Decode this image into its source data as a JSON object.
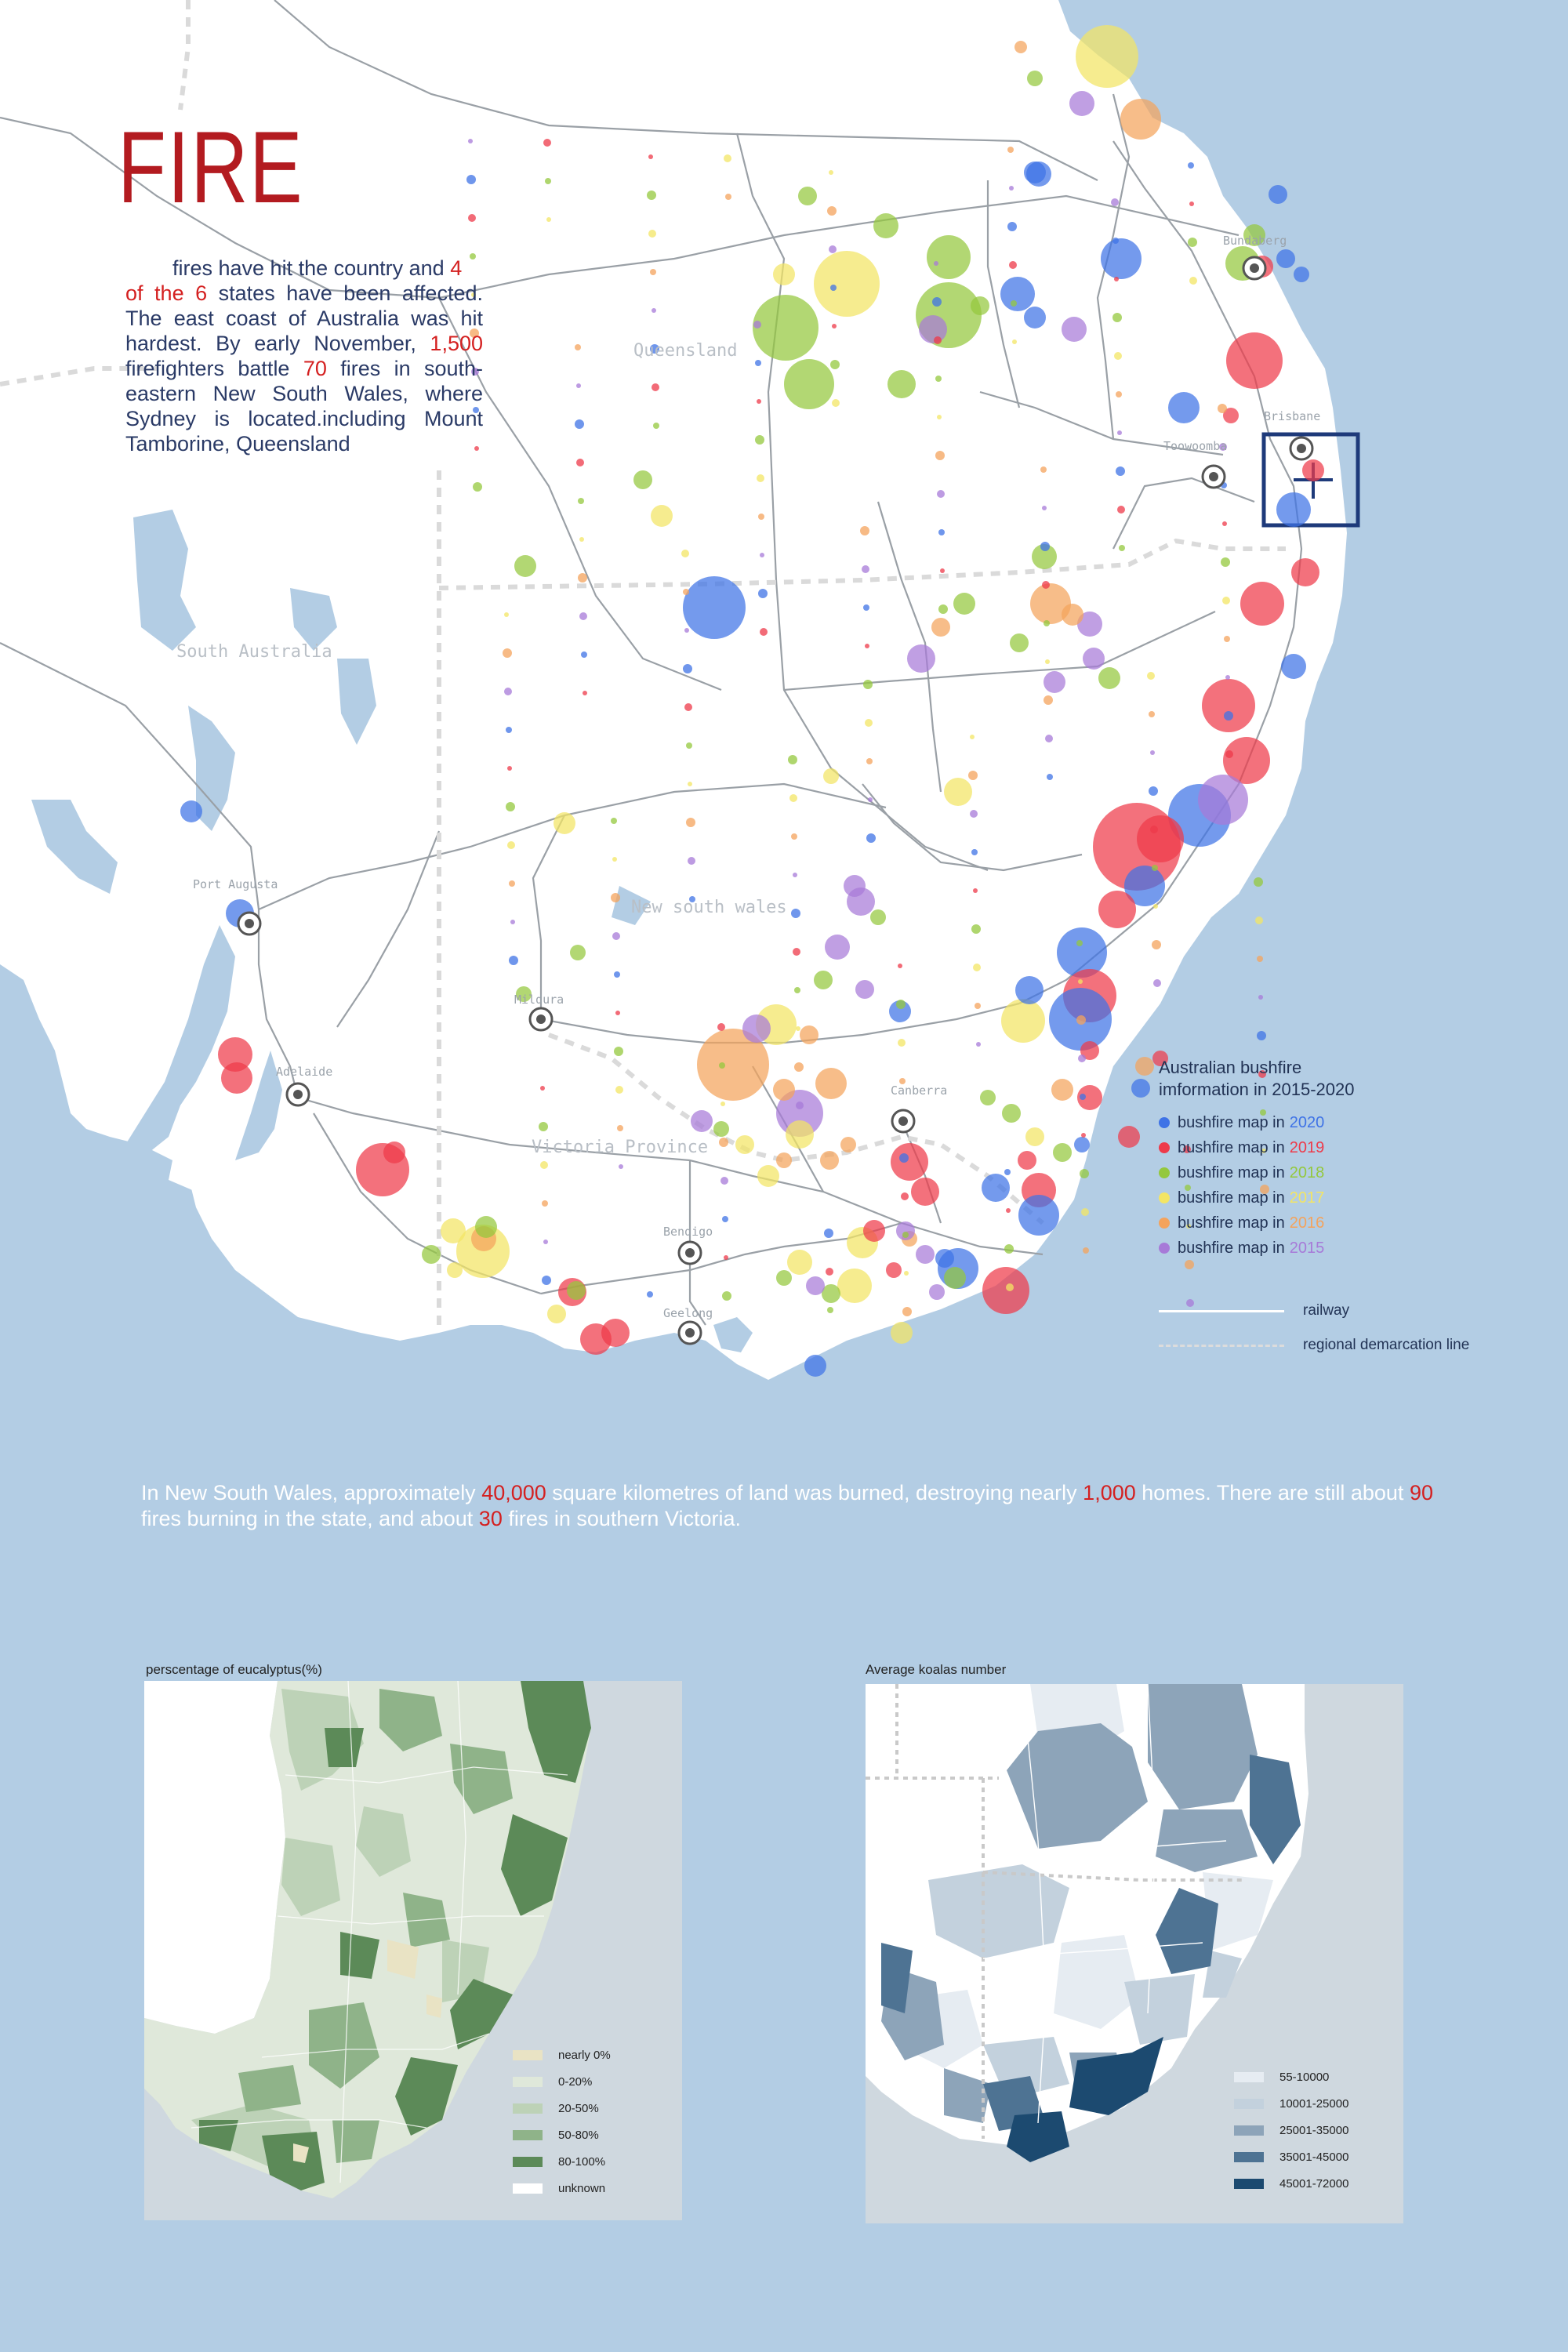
{
  "title": "FIRE",
  "intro": {
    "p1": "fires have hit the country and ",
    "n1": "4",
    "p2": "of the ",
    "n2": "6",
    "p3": " states have been affected. The east coast of Australia was hit hardest. By early November, ",
    "n3": "1,500",
    "p4": " firefighters battle ",
    "n4": "70",
    "p5": " fires in south-eastern New South Wales, where Sydney is located.including Mount Tamborine, Queensland"
  },
  "map_labels": {
    "queensland": "Queensland",
    "south_australia": "South Australia",
    "nsw": "New south wales",
    "victoria": "Victoria Province",
    "port_augusta": "Port Augusta",
    "adelaide": "Adelaide",
    "mildura": "Mildura",
    "canberra": "Canberra",
    "bendigo": "Bendigo",
    "geelong": "Geelong",
    "bundaberg": "Bundaberg",
    "brisbane": "Brisbane",
    "toowoomba": "Toowoomba"
  },
  "legend": {
    "title_line1": "Australian bushfire",
    "title_line2": "imformation in 2015-2020",
    "prefix": "bushfire map in",
    "items": [
      {
        "year": "2020",
        "color": "#3f73e6"
      },
      {
        "year": "2019",
        "color": "#ee3a4a"
      },
      {
        "year": "2018",
        "color": "#94c83d"
      },
      {
        "year": "2017",
        "color": "#f3e564"
      },
      {
        "year": "2016",
        "color": "#f4a35c"
      },
      {
        "year": "2015",
        "color": "#a77ad8"
      }
    ]
  },
  "lines_legend": {
    "railway": "railway",
    "demarcation": "regional demarcation line"
  },
  "summary": {
    "s1": "In New South Wales, approximately ",
    "n1": "40,000",
    "s2": " square kilometres of land was burned, destroying nearly ",
    "n2": "1,000",
    "s3": " homes. There are still about ",
    "n3": "90",
    "s4": " fires burning in the state, and about ",
    "n4": "30",
    "s5": " fires in southern Victoria."
  },
  "eucalyptus": {
    "title": "perscentage of eucalyptus(%)",
    "legend": [
      {
        "label": "nearly 0%",
        "color": "#e9e3c4"
      },
      {
        "label": "0-20%",
        "color": "#dfe8da"
      },
      {
        "label": "20-50%",
        "color": "#bdd2b7"
      },
      {
        "label": "50-80%",
        "color": "#8fb389"
      },
      {
        "label": "80-100%",
        "color": "#5c8a58"
      },
      {
        "label": "unknown",
        "color": "#ffffff"
      }
    ]
  },
  "koalas": {
    "title": "Average koalas number",
    "legend": [
      {
        "label": "55-10000",
        "color": "#e6ecf2"
      },
      {
        "label": "10001-25000",
        "color": "#c3d1dd"
      },
      {
        "label": "25001-35000",
        "color": "#8da4b9"
      },
      {
        "label": "35001-45000",
        "color": "#4e7393"
      },
      {
        "label": "45001-72000",
        "color": "#1c4a70"
      }
    ]
  }
}
